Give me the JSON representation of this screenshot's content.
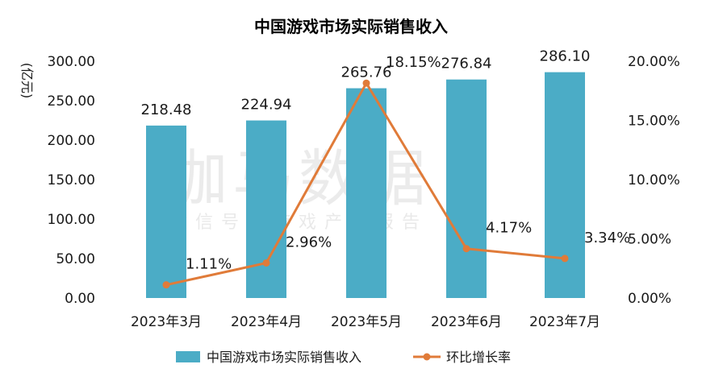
{
  "chart_data": {
    "type": "bar",
    "title": "中国游戏市场实际销售收入",
    "categories": [
      "2023年3月",
      "2023年4月",
      "2023年5月",
      "2023年6月",
      "2023年7月"
    ],
    "series": [
      {
        "name": "中国游戏市场实际销售收入",
        "type": "bar",
        "axis": "left",
        "color": "#4bacc6",
        "values": [
          218.48,
          224.94,
          265.76,
          276.84,
          286.1
        ],
        "labels": [
          "218.48",
          "224.94",
          "265.76",
          "276.84",
          "286.10"
        ]
      },
      {
        "name": "环比增长率",
        "type": "line",
        "axis": "right",
        "color": "#e07b39",
        "values": [
          1.11,
          2.96,
          18.15,
          4.17,
          3.34
        ],
        "labels": [
          "1.11%",
          "2.96%",
          "18.15%",
          "4.17%",
          "3.34%"
        ]
      }
    ],
    "ylabel": "(亿元)",
    "ylim": [
      0,
      300
    ],
    "y_ticks": [
      "0.00",
      "50.00",
      "100.00",
      "150.00",
      "200.00",
      "250.00",
      "300.00"
    ],
    "y2lim": [
      0,
      20
    ],
    "y2_ticks": [
      "0.00%",
      "5.00%",
      "10.00%",
      "15.00%",
      "20.00%"
    ],
    "grid": false,
    "legend_position": "bottom"
  },
  "watermark": {
    "main": "伽马数据",
    "sub": "微信号：游戏产业报告"
  }
}
